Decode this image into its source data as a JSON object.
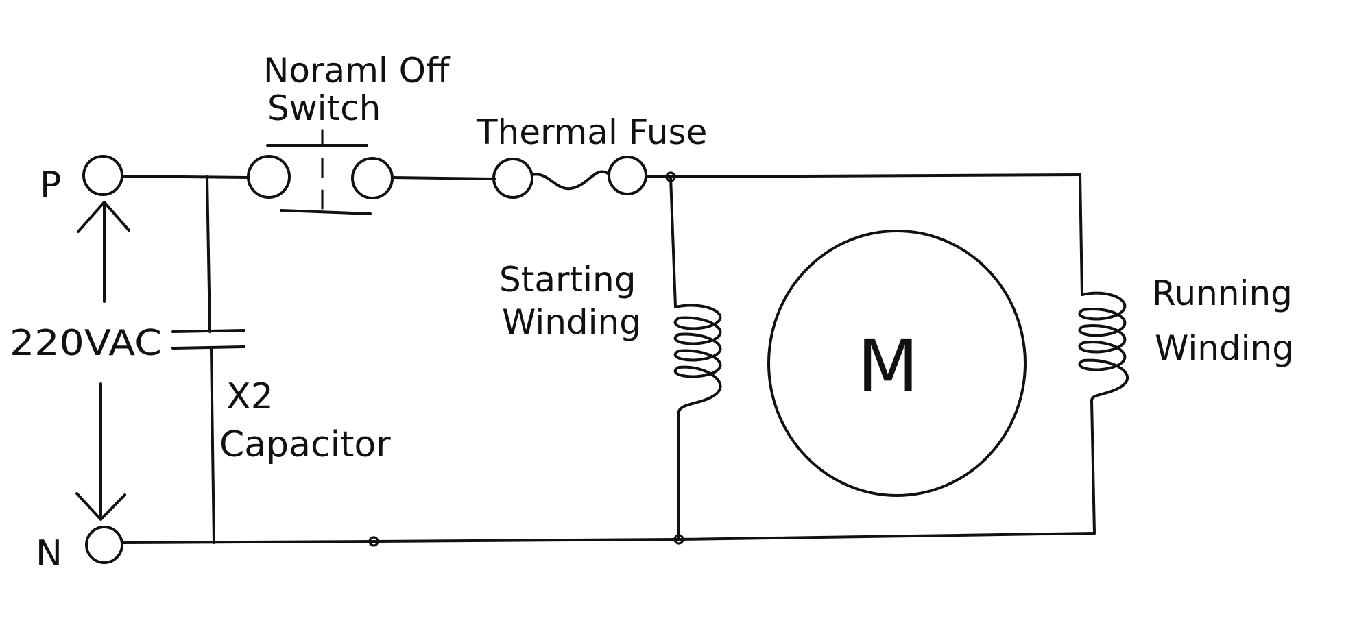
{
  "terminals": {
    "phase": "P",
    "neutral": "N"
  },
  "supply": {
    "voltage": "220VAC"
  },
  "switch": {
    "label_line1": "Noraml Off",
    "label_line2": "Switch"
  },
  "fuse": {
    "label": "Thermal Fuse"
  },
  "capacitor": {
    "label_line1": "X2",
    "label_line2": "Capacitor"
  },
  "starting_winding": {
    "label_line1": "Starting",
    "label_line2": "Winding"
  },
  "motor": {
    "label": "M"
  },
  "running_winding": {
    "label_line1": "Running",
    "label_line2": "Winding"
  },
  "colors": {
    "ink": "#111111",
    "paper": "#ffffff"
  }
}
